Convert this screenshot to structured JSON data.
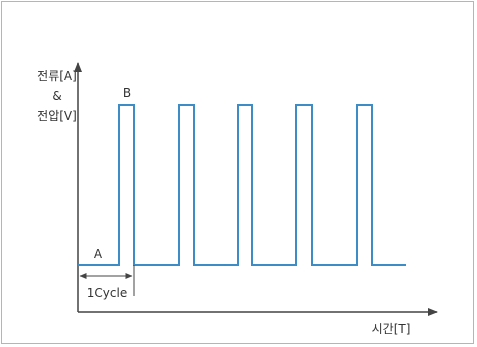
{
  "labels": {
    "y_axis": [
      "전류[A]",
      "&",
      "전압[V]"
    ],
    "x_axis": "시간[T]",
    "point_a": "A",
    "point_b": "B",
    "cycle": "1Cycle"
  },
  "colors": {
    "border": "#e8a779",
    "axis": "#444444",
    "waveform": "#3d8cc6",
    "text": "#333333"
  }
}
